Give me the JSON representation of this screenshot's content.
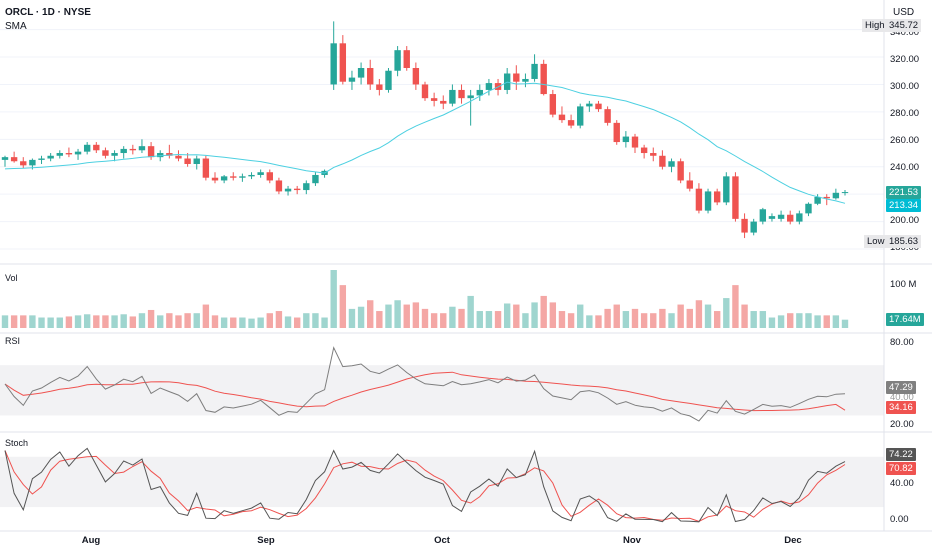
{
  "header": {
    "title": "ORCL · 1D · NYSE",
    "indicator": "SMA",
    "currency": "USD"
  },
  "panes": {
    "volume": "Vol",
    "rsi": "RSI",
    "stoch": "Stoch"
  },
  "price_axis": {
    "ticks": [
      "340.00",
      "320.00",
      "300.00",
      "280.00",
      "260.00",
      "240.00",
      "200.00",
      "180.00"
    ],
    "high_label": "High",
    "high_value": "345.72",
    "low_label": "Low",
    "low_value": "185.63",
    "last_price": "221.53",
    "sma_value": "213.34"
  },
  "volume_axis": {
    "ticks": [
      "100 M"
    ],
    "last_volume": "17.64M"
  },
  "rsi_axis": {
    "ticks": [
      "80.00",
      "40.00",
      "20.00"
    ],
    "rsi_value": "47.29",
    "rsi_ma_value": "34.16",
    "partial_tick": "40.00"
  },
  "stoch_axis": {
    "ticks": [
      "40.00",
      "0.00"
    ],
    "k_value": "74.22",
    "d_value": "70.82"
  },
  "x_axis": {
    "labels": [
      "Aug",
      "Sep",
      "Oct",
      "Nov",
      "Dec"
    ]
  },
  "colors": {
    "up": "#26a69a",
    "down": "#ef5350",
    "sma": "#4dd0e1",
    "rsi": "#7e7e7e",
    "rsi_ma": "#ef5350",
    "stoch_k": "#555555",
    "stoch_d": "#ef5350",
    "band": "#f2f2f4",
    "sma_tag": "#00bcd4",
    "rsi_tag": "#808080"
  },
  "chart_data": {
    "type": "candlestick",
    "symbol": "ORCL",
    "interval": "1D",
    "exchange": "NYSE",
    "price_range": [
      172,
      347
    ],
    "candles": [
      [
        245,
        248,
        240,
        247
      ],
      [
        247,
        251,
        243,
        244
      ],
      [
        244,
        247,
        239,
        241
      ],
      [
        241,
        246,
        238,
        245
      ],
      [
        245,
        248,
        242,
        246
      ],
      [
        246,
        250,
        244,
        248
      ],
      [
        248,
        252,
        246,
        250
      ],
      [
        250,
        254,
        247,
        249
      ],
      [
        249,
        253,
        245,
        251
      ],
      [
        251,
        258,
        249,
        256
      ],
      [
        256,
        258,
        250,
        252
      ],
      [
        252,
        254,
        246,
        248
      ],
      [
        248,
        252,
        244,
        250
      ],
      [
        250,
        255,
        246,
        253
      ],
      [
        253,
        256,
        249,
        252
      ],
      [
        252,
        260,
        250,
        255
      ],
      [
        255,
        258,
        245,
        247
      ],
      [
        247,
        252,
        244,
        250
      ],
      [
        250,
        256,
        246,
        248
      ],
      [
        248,
        252,
        244,
        246
      ],
      [
        246,
        250,
        240,
        242
      ],
      [
        242,
        248,
        238,
        246
      ],
      [
        246,
        248,
        230,
        232
      ],
      [
        232,
        236,
        228,
        230
      ],
      [
        230,
        234,
        228,
        233
      ],
      [
        233,
        236,
        230,
        232
      ],
      [
        232,
        235,
        229,
        233
      ],
      [
        233,
        236,
        231,
        234
      ],
      [
        234,
        238,
        232,
        236
      ],
      [
        236,
        238,
        228,
        230
      ],
      [
        230,
        232,
        220,
        222
      ],
      [
        222,
        226,
        219,
        224
      ],
      [
        224,
        226,
        220,
        223
      ],
      [
        223,
        230,
        220,
        228
      ],
      [
        228,
        236,
        226,
        234
      ],
      [
        234,
        238,
        232,
        237
      ],
      [
        300,
        346,
        296,
        330
      ],
      [
        330,
        336,
        300,
        302
      ],
      [
        302,
        310,
        296,
        305
      ],
      [
        305,
        316,
        300,
        312
      ],
      [
        312,
        318,
        296,
        300
      ],
      [
        300,
        304,
        292,
        296
      ],
      [
        296,
        312,
        294,
        310
      ],
      [
        310,
        328,
        306,
        325
      ],
      [
        325,
        328,
        310,
        312
      ],
      [
        312,
        316,
        296,
        300
      ],
      [
        300,
        302,
        288,
        290
      ],
      [
        290,
        294,
        284,
        288
      ],
      [
        288,
        292,
        282,
        286
      ],
      [
        286,
        300,
        284,
        296
      ],
      [
        296,
        300,
        286,
        290
      ],
      [
        290,
        296,
        270,
        292
      ],
      [
        292,
        300,
        288,
        296
      ],
      [
        296,
        304,
        292,
        301
      ],
      [
        301,
        304,
        292,
        296
      ],
      [
        296,
        312,
        293,
        308
      ],
      [
        308,
        314,
        296,
        302
      ],
      [
        302,
        308,
        298,
        304
      ],
      [
        304,
        322,
        302,
        315
      ],
      [
        315,
        318,
        292,
        293
      ],
      [
        293,
        296,
        276,
        278
      ],
      [
        278,
        284,
        272,
        274
      ],
      [
        274,
        278,
        268,
        270
      ],
      [
        270,
        286,
        268,
        284
      ],
      [
        284,
        288,
        280,
        286
      ],
      [
        286,
        288,
        280,
        282
      ],
      [
        282,
        284,
        270,
        272
      ],
      [
        272,
        274,
        256,
        258
      ],
      [
        258,
        266,
        254,
        262
      ],
      [
        262,
        264,
        250,
        254
      ],
      [
        254,
        256,
        246,
        250
      ],
      [
        250,
        254,
        244,
        248
      ],
      [
        248,
        252,
        238,
        240
      ],
      [
        240,
        246,
        236,
        244
      ],
      [
        244,
        246,
        228,
        230
      ],
      [
        230,
        236,
        222,
        224
      ],
      [
        224,
        228,
        206,
        208
      ],
      [
        208,
        224,
        206,
        222
      ],
      [
        222,
        224,
        212,
        214
      ],
      [
        214,
        236,
        212,
        233
      ],
      [
        233,
        236,
        200,
        202
      ],
      [
        202,
        206,
        188,
        192
      ],
      [
        192,
        202,
        190,
        200
      ],
      [
        200,
        210,
        198,
        209
      ],
      [
        202,
        206,
        200,
        204
      ],
      [
        202,
        208,
        200,
        205
      ],
      [
        205,
        208,
        198,
        200
      ],
      [
        200,
        208,
        198,
        206
      ],
      [
        206,
        214,
        204,
        213
      ],
      [
        213,
        220,
        212,
        218
      ],
      [
        218,
        220,
        212,
        217
      ],
      [
        217,
        224,
        216,
        221
      ],
      [
        221,
        223,
        219,
        221.53
      ]
    ],
    "sma_last": 213.34,
    "volume_last": "17.64M",
    "rsi_range": [
      20,
      90
    ],
    "rsi_last": 47.29,
    "rsi_ma_last": 34.16,
    "stoch_range": [
      -5,
      100
    ],
    "stoch_k_last": 74.22,
    "stoch_d_last": 70.82,
    "x_labels": [
      "Aug",
      "Sep",
      "Oct",
      "Nov",
      "Dec"
    ]
  }
}
